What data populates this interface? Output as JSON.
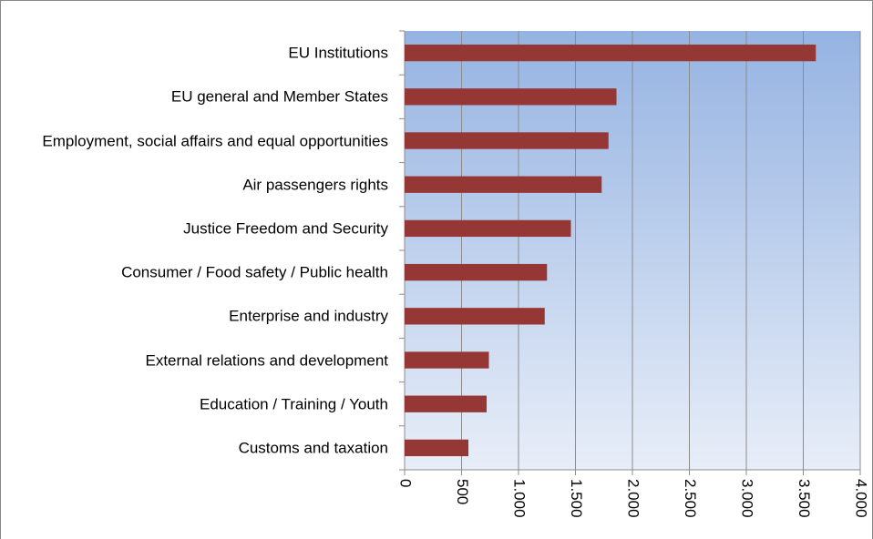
{
  "chart_data": {
    "type": "bar",
    "orientation": "horizontal",
    "categories": [
      "EU Institutions",
      "EU general and Member States",
      "Employment, social affairs and equal opportunities",
      "Air passengers rights",
      "Justice Freedom and Security",
      "Consumer / Food safety / Public health",
      "Enterprise and industry",
      "External relations and development",
      "Education / Training / Youth",
      "Customs and taxation"
    ],
    "values": [
      3610,
      1860,
      1790,
      1730,
      1460,
      1250,
      1230,
      740,
      720,
      560
    ],
    "color": "#953735",
    "xlim": [
      0,
      4000
    ],
    "xticks": [
      0,
      500,
      {
        "value": 1000,
        "label": "1.000"
      },
      {
        "value": 1500,
        "label": "1.500"
      },
      {
        "value": 2000,
        "label": "2.000"
      },
      {
        "value": 2500,
        "label": "2.500"
      },
      {
        "value": 3000,
        "label": "3.000"
      },
      {
        "value": 3500,
        "label": "3.500"
      },
      {
        "value": 4000,
        "label": "4.000"
      }
    ],
    "grid": true
  }
}
